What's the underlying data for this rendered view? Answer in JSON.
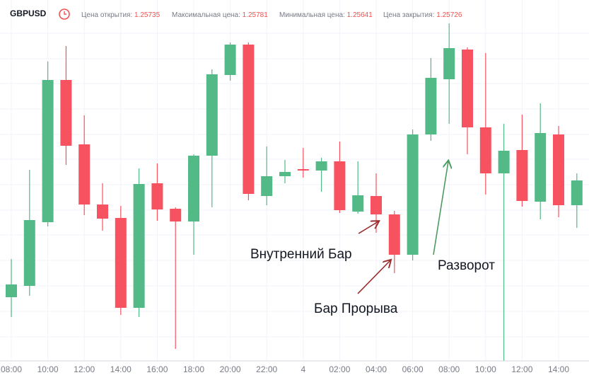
{
  "chart_data": {
    "type": "candlestick",
    "symbol": "GBPUSD",
    "header": [
      {
        "label": "Цена открытия:",
        "value": 1.25735
      },
      {
        "label": "Максимальная цена:",
        "value": 1.25781
      },
      {
        "label": "Минимальная цена:",
        "value": 1.25641
      },
      {
        "label": "Цена закрытия:",
        "value": 1.25726
      }
    ],
    "categories": [
      "08:00",
      null,
      "10:00",
      null,
      "12:00",
      null,
      "14:00",
      null,
      "16:00",
      null,
      "18:00",
      null,
      "20:00",
      null,
      "22:00",
      null,
      "4",
      null,
      "02:00",
      null,
      "04:00",
      null,
      "06:00",
      null,
      "08:00",
      null,
      "10:00",
      null,
      "12:00",
      null,
      "14:00",
      null
    ],
    "open": [
      1.2566,
      1.25692,
      1.25872,
      1.26274,
      1.26092,
      1.25922,
      1.25884,
      1.2563,
      1.25982,
      1.2591,
      1.25874,
      1.2606,
      1.26288,
      1.26374,
      1.25946,
      1.26002,
      1.26022,
      1.26018,
      1.26044,
      1.25902,
      1.25946,
      1.25894,
      1.2578,
      1.2612,
      1.26276,
      1.2636,
      1.2614,
      1.2601,
      1.26076,
      1.2593,
      1.2612,
      1.2592
    ],
    "high": [
      1.25768,
      1.2602,
      1.26326,
      1.2637,
      1.26174,
      1.25982,
      1.25918,
      1.26024,
      1.26038,
      1.25914,
      1.26064,
      1.26304,
      1.2638,
      1.2638,
      1.26086,
      1.26048,
      1.26082,
      1.26054,
      1.261,
      1.26044,
      1.2601,
      1.25904,
      1.26134,
      1.26336,
      1.26434,
      1.26366,
      1.2635,
      1.2615,
      1.26176,
      1.26208,
      1.26144,
      1.2601
    ],
    "low": [
      1.25604,
      1.25664,
      1.2586,
      1.26034,
      1.25892,
      1.25848,
      1.2561,
      1.25604,
      1.25876,
      1.25514,
      1.2578,
      1.25914,
      1.26272,
      1.25934,
      1.2592,
      1.25982,
      1.25998,
      1.25958,
      1.25898,
      1.25896,
      1.25842,
      1.25728,
      1.25764,
      1.26102,
      1.2615,
      1.26064,
      1.2595,
      1.2548,
      1.25916,
      1.2588,
      1.25886,
      1.25856
    ],
    "close": [
      1.25696,
      1.25878,
      1.26274,
      1.26088,
      1.25922,
      1.25882,
      1.2563,
      1.2598,
      1.25908,
      1.25874,
      1.2606,
      1.2629,
      1.26374,
      1.25952,
      1.26002,
      1.26014,
      1.26018,
      1.26044,
      1.25906,
      1.25948,
      1.25894,
      1.2578,
      1.2612,
      1.2628,
      1.26364,
      1.2614,
      1.2601,
      1.26074,
      1.25932,
      1.26124,
      1.2592,
      1.2599
    ],
    "up_color": "#53b987",
    "down_color": "#f7525f",
    "ylim": [
      1.2548,
      1.265
    ],
    "annotations": [
      "Внутренний Бар",
      "Бар Прорыва",
      "Разворот"
    ]
  }
}
